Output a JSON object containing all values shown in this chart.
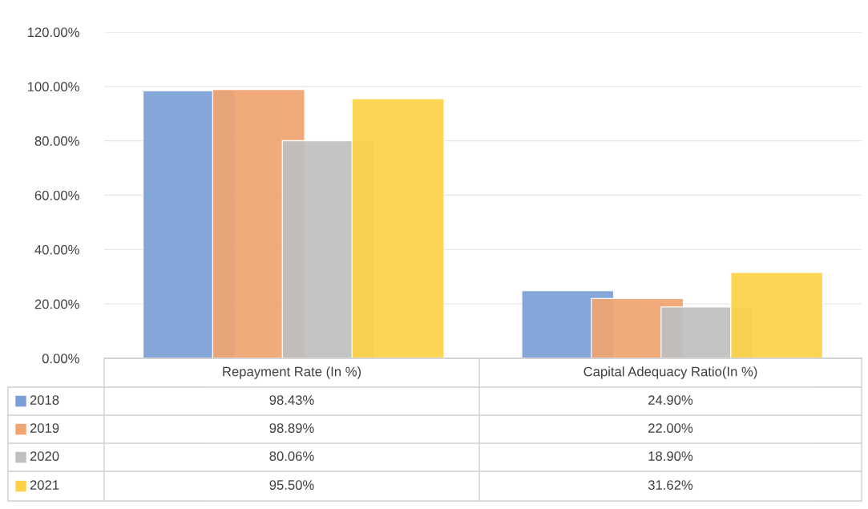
{
  "chart_data": {
    "type": "bar",
    "categories": [
      "Repayment Rate (In %)",
      "Capital Adequacy Ratio(In %)"
    ],
    "series": [
      {
        "name": "2018",
        "color": "#7a9fd6",
        "values": [
          98.43,
          24.9
        ],
        "value_labels": [
          "98.43%",
          "24.90%"
        ]
      },
      {
        "name": "2019",
        "color": "#f0a470",
        "values": [
          98.89,
          22.0
        ],
        "value_labels": [
          "98.89%",
          "22.00%"
        ]
      },
      {
        "name": "2020",
        "color": "#bfbfbf",
        "values": [
          80.06,
          18.9
        ],
        "value_labels": [
          "80.06%",
          "18.90%"
        ]
      },
      {
        "name": "2021",
        "color": "#fdd247",
        "values": [
          95.5,
          31.62
        ],
        "value_labels": [
          "95.50%",
          "31.62%"
        ]
      }
    ],
    "ylim": [
      0,
      120
    ],
    "yticks": [
      {
        "value": 0,
        "label": "0.00%"
      },
      {
        "value": 20,
        "label": "20.00%"
      },
      {
        "value": 40,
        "label": "40.00%"
      },
      {
        "value": 60,
        "label": "60.00%"
      },
      {
        "value": 80,
        "label": "80.00%"
      },
      {
        "value": 100,
        "label": "100.00%"
      },
      {
        "value": 120,
        "label": "120.00%"
      }
    ],
    "grid": "y",
    "legend": "bottom"
  }
}
